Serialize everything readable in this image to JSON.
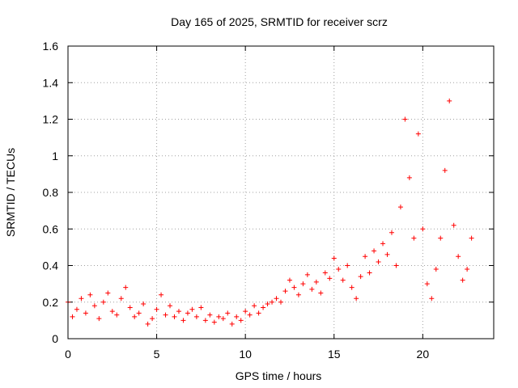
{
  "chart_data": {
    "type": "scatter",
    "title": "Day 165 of 2025, SRMTID for receiver scrz",
    "xlabel": "GPS time / hours",
    "ylabel": "SRMTID / TECUs",
    "xlim": [
      0,
      24
    ],
    "ylim": [
      0,
      1.6
    ],
    "xticks": [
      0,
      5,
      10,
      15,
      20
    ],
    "xtick_labels": [
      "0",
      "5",
      "10",
      "15",
      "20"
    ],
    "yticks": [
      0,
      0.2,
      0.4,
      0.6,
      0.8,
      1,
      1.2,
      1.4,
      1.6
    ],
    "ytick_labels": [
      "0",
      "0.2",
      "0.4",
      "0.6",
      "0.8",
      "1",
      "1.2",
      "1.4",
      "1.6"
    ],
    "grid": true,
    "marker": "+",
    "marker_color": "#ff0000",
    "series": [
      {
        "name": "SRMTID",
        "x": [
          0.0,
          0.25,
          0.5,
          0.75,
          1.0,
          1.25,
          1.5,
          1.75,
          2.0,
          2.25,
          2.5,
          2.75,
          3.0,
          3.25,
          3.5,
          3.75,
          4.0,
          4.25,
          4.5,
          4.75,
          5.0,
          5.25,
          5.5,
          5.75,
          6.0,
          6.25,
          6.5,
          6.75,
          7.0,
          7.25,
          7.5,
          7.75,
          8.0,
          8.25,
          8.5,
          8.75,
          9.0,
          9.25,
          9.5,
          9.75,
          10.0,
          10.25,
          10.5,
          10.75,
          11.0,
          11.25,
          11.5,
          11.75,
          12.0,
          12.25,
          12.5,
          12.75,
          13.0,
          13.25,
          13.5,
          13.75,
          14.0,
          14.25,
          14.5,
          14.75,
          15.0,
          15.25,
          15.5,
          15.75,
          16.0,
          16.25,
          16.5,
          16.75,
          17.0,
          17.25,
          17.5,
          17.75,
          18.0,
          18.25,
          18.5,
          18.75,
          19.0,
          19.25,
          19.5,
          19.75,
          20.0,
          20.25,
          20.5,
          20.75,
          21.0,
          21.25,
          21.5,
          21.75,
          22.0,
          22.25,
          22.5,
          22.75
        ],
        "y": [
          0.2,
          0.12,
          0.16,
          0.22,
          0.14,
          0.24,
          0.18,
          0.11,
          0.2,
          0.25,
          0.15,
          0.13,
          0.22,
          0.28,
          0.17,
          0.12,
          0.14,
          0.19,
          0.08,
          0.11,
          0.16,
          0.24,
          0.13,
          0.18,
          0.12,
          0.15,
          0.1,
          0.14,
          0.16,
          0.12,
          0.17,
          0.1,
          0.13,
          0.09,
          0.12,
          0.11,
          0.14,
          0.08,
          0.12,
          0.1,
          0.15,
          0.13,
          0.18,
          0.14,
          0.17,
          0.19,
          0.2,
          0.22,
          0.2,
          0.26,
          0.32,
          0.28,
          0.24,
          0.3,
          0.35,
          0.27,
          0.31,
          0.25,
          0.36,
          0.33,
          0.44,
          0.38,
          0.32,
          0.4,
          0.28,
          0.22,
          0.34,
          0.45,
          0.36,
          0.48,
          0.42,
          0.52,
          0.46,
          0.58,
          0.4,
          0.72,
          1.2,
          0.88,
          0.55,
          1.12,
          0.6,
          0.3,
          0.22,
          0.38,
          0.55,
          0.92,
          1.3,
          0.62,
          0.45,
          0.32,
          0.38,
          0.55
        ]
      }
    ]
  }
}
